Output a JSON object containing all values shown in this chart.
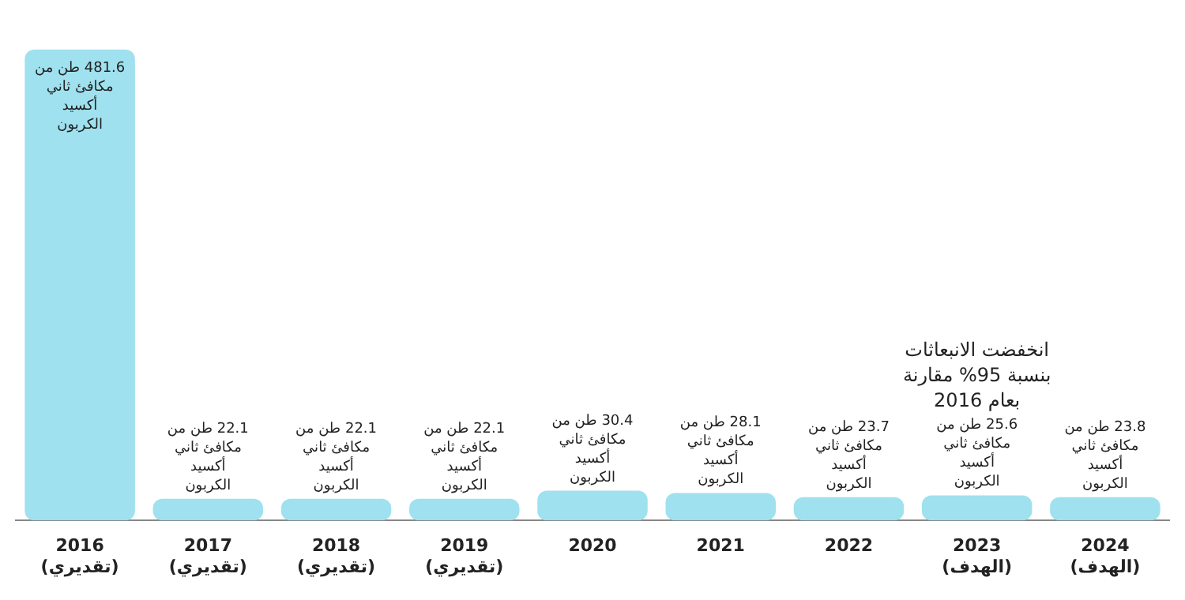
{
  "chart_data": {
    "type": "bar",
    "categories": [
      "2016 (تقديري)",
      "2017 (تقديري)",
      "2018 (تقديري)",
      "2019 (تقديري)",
      "2020",
      "2021",
      "2022",
      "2023 (الهدف)",
      "2024 (الهدف)"
    ],
    "values": [
      481.6,
      22.1,
      22.1,
      22.1,
      30.4,
      28.1,
      23.7,
      25.6,
      23.8
    ],
    "value_labels": [
      "481.6 طن من مكافئ ثاني أكسيد الكربون",
      "22.1 طن من مكافئ ثاني أكسيد الكربون",
      "22.1 طن من مكافئ ثاني أكسيد الكربون",
      "22.1 طن من مكافئ ثاني أكسيد الكربون",
      "30.4 طن من مكافئ ثاني أكسيد الكربون",
      "28.1 طن من مكافئ ثاني أكسيد الكربون",
      "23.7 طن من مكافئ ثاني أكسيد الكربون",
      "25.6 طن من مكافئ ثاني أكسيد الكربون",
      "23.8 طن من مكافئ ثاني أكسيد الكربون"
    ],
    "color": "#9fe1ef",
    "annotations": [
      "انخفضت الانبعاثات بنسبة 95% مقارنة بعام 2016"
    ],
    "grid": false,
    "legend": false
  }
}
